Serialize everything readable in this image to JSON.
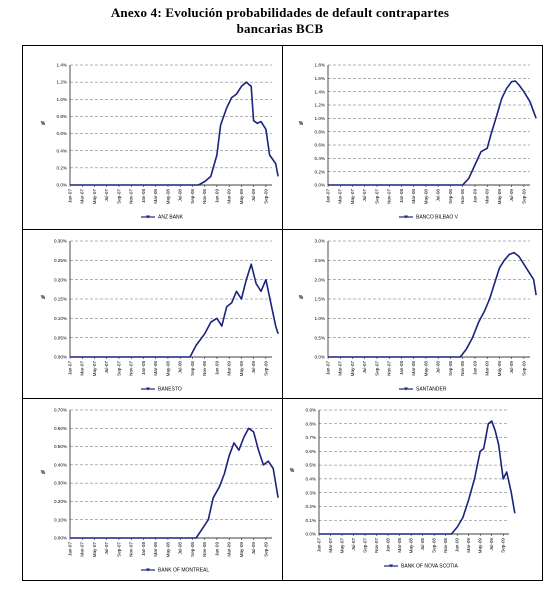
{
  "page": {
    "title_line1": "Anexo 4: Evolución probabilidades de default contrapartes",
    "title_line2": "bancarias BCB"
  },
  "chart_data": [
    {
      "type": "line",
      "legend": "ANZ BANK",
      "ylabel": "%",
      "ylim": [
        0,
        1.4
      ],
      "yticks": [
        "0.0%",
        "0.2%",
        "0.4%",
        "0.6%",
        "0.8%",
        "1.0%",
        "1.2%",
        "1.4%"
      ],
      "xticks": [
        "Jan-07",
        "Mar-07",
        "May-07",
        "Jul-07",
        "Sep-07",
        "Nov-07",
        "Jan-08",
        "Mar-08",
        "May-08",
        "Jul-08",
        "Sep-08",
        "Nov-08",
        "Jan-09",
        "Mar-09",
        "May-09",
        "Jul-09",
        "Sep-09"
      ],
      "series": [
        {
          "x": [
            0,
            10.5,
            11,
            11.5,
            12,
            12.3,
            12.8,
            13.2,
            13.6,
            14,
            14.4,
            14.8,
            15,
            15.3,
            15.6,
            16,
            16.3,
            16.8,
            17
          ],
          "values": [
            0,
            0,
            0.04,
            0.1,
            0.35,
            0.7,
            0.9,
            1.02,
            1.06,
            1.15,
            1.2,
            1.15,
            0.75,
            0.72,
            0.74,
            0.65,
            0.35,
            0.25,
            0.1
          ]
        }
      ]
    },
    {
      "type": "line",
      "legend": "BANCO BILBAO V",
      "ylabel": "%",
      "ylim": [
        0,
        1.8
      ],
      "yticks": [
        "0.0%",
        "0.2%",
        "0.4%",
        "0.6%",
        "0.8%",
        "1.0%",
        "1.2%",
        "1.4%",
        "1.6%",
        "1.8%"
      ],
      "xticks": [
        "Jan-07",
        "Mar-07",
        "May-07",
        "Jul-07",
        "Sep-07",
        "Nov-07",
        "Jan-08",
        "Mar-08",
        "May-08",
        "Jul-08",
        "Sep-08",
        "Nov-08",
        "Jan-09",
        "Mar-09",
        "May-09",
        "Jul-09",
        "Sep-09"
      ],
      "series": [
        {
          "x": [
            0,
            11,
            11.5,
            12,
            12.5,
            13,
            13.3,
            13.8,
            14.2,
            14.6,
            15,
            15.3,
            15.6,
            16,
            16.5,
            17
          ],
          "values": [
            0,
            0,
            0.1,
            0.3,
            0.5,
            0.55,
            0.75,
            1.05,
            1.3,
            1.45,
            1.55,
            1.56,
            1.5,
            1.4,
            1.25,
            1.0
          ]
        }
      ]
    },
    {
      "type": "line",
      "legend": "BANESTO",
      "ylabel": "%",
      "ylim": [
        0,
        0.3
      ],
      "yticks": [
        "0.00%",
        "0.05%",
        "0.10%",
        "0.15%",
        "0.20%",
        "0.25%",
        "0.30%"
      ],
      "xticks": [
        "Jan-07",
        "Mar-07",
        "May-07",
        "Jul-07",
        "Sep-07",
        "Nov-07",
        "Jan-08",
        "Mar-08",
        "May-08",
        "Jul-08",
        "Sep-08",
        "Nov-08",
        "Jan-09",
        "Mar-09",
        "May-09",
        "Jul-09",
        "Sep-09"
      ],
      "series": [
        {
          "x": [
            0,
            9.8,
            10.3,
            11,
            11.5,
            12,
            12.4,
            12.8,
            13.2,
            13.6,
            14,
            14.4,
            14.8,
            15.2,
            15.6,
            16,
            16.4,
            16.8,
            17
          ],
          "values": [
            0,
            0,
            0.03,
            0.06,
            0.09,
            0.1,
            0.08,
            0.13,
            0.14,
            0.17,
            0.15,
            0.2,
            0.24,
            0.19,
            0.17,
            0.2,
            0.14,
            0.08,
            0.06
          ]
        }
      ]
    },
    {
      "type": "line",
      "legend": "SANTANDER",
      "ylabel": "%",
      "ylim": [
        0,
        3.0
      ],
      "yticks": [
        "0.0%",
        "0.5%",
        "1.0%",
        "1.5%",
        "2.0%",
        "2.5%",
        "3.0%"
      ],
      "xticks": [
        "Jan-07",
        "Mar-07",
        "May-07",
        "Jul-07",
        "Sep-07",
        "Nov-07",
        "Jan-08",
        "Mar-08",
        "May-08",
        "Jul-08",
        "Sep-08",
        "Nov-08",
        "Jan-09",
        "Mar-09",
        "May-09",
        "Jul-09",
        "Sep-09"
      ],
      "series": [
        {
          "x": [
            0,
            10.8,
            11.3,
            11.8,
            12.3,
            12.8,
            13.2,
            13.6,
            14,
            14.4,
            14.8,
            15.2,
            15.6,
            16,
            16.4,
            16.8,
            17
          ],
          "values": [
            0,
            0,
            0.2,
            0.5,
            0.9,
            1.2,
            1.5,
            1.9,
            2.3,
            2.5,
            2.65,
            2.7,
            2.6,
            2.4,
            2.2,
            2.0,
            1.6
          ]
        }
      ]
    },
    {
      "type": "line",
      "legend": "BANK OF MONTREAL",
      "ylabel": "%",
      "ylim": [
        0,
        0.7
      ],
      "yticks": [
        "0.00%",
        "0.10%",
        "0.20%",
        "0.30%",
        "0.40%",
        "0.50%",
        "0.60%",
        "0.70%"
      ],
      "xticks": [
        "Jan-07",
        "Mar-07",
        "May-07",
        "Jul-07",
        "Sep-07",
        "Nov-07",
        "Jan-08",
        "Mar-08",
        "May-08",
        "Jul-08",
        "Sep-08",
        "Nov-08",
        "Jan-09",
        "Mar-09",
        "May-09",
        "Jul-09",
        "Sep-09"
      ],
      "series": [
        {
          "x": [
            0,
            10.3,
            10.8,
            11.3,
            11.7,
            12.2,
            12.6,
            13,
            13.4,
            13.8,
            14.2,
            14.6,
            15,
            15.4,
            15.8,
            16.2,
            16.6,
            17
          ],
          "values": [
            0,
            0,
            0.05,
            0.1,
            0.22,
            0.28,
            0.35,
            0.45,
            0.52,
            0.48,
            0.55,
            0.6,
            0.58,
            0.48,
            0.4,
            0.42,
            0.38,
            0.22
          ]
        }
      ]
    },
    {
      "type": "line",
      "legend": "BANK OF NOVA SCOTIA",
      "ylabel": "%",
      "ylim": [
        0,
        0.9
      ],
      "yticks": [
        "0.0%",
        "0.1%",
        "0.2%",
        "0.3%",
        "0.4%",
        "0.5%",
        "0.6%",
        "0.7%",
        "0.8%",
        "0.9%"
      ],
      "xticks": [
        "Jan-07",
        "Mar-07",
        "May-07",
        "Jul-07",
        "Sep-07",
        "Nov-07",
        "Jan-08",
        "Mar-08",
        "May-08",
        "Jul-08",
        "Sep-08",
        "Nov-08",
        "Jan-09",
        "Mar-09",
        "May-09",
        "Jul-09",
        "Sep-09"
      ],
      "series": [
        {
          "x": [
            0,
            11.5,
            12,
            12.5,
            13,
            13.5,
            14,
            14.3,
            14.7,
            15,
            15.3,
            15.6,
            16,
            16.3,
            16.7,
            17
          ],
          "values": [
            0,
            0,
            0.05,
            0.12,
            0.25,
            0.4,
            0.6,
            0.62,
            0.8,
            0.82,
            0.75,
            0.65,
            0.4,
            0.45,
            0.3,
            0.15
          ]
        }
      ]
    }
  ]
}
